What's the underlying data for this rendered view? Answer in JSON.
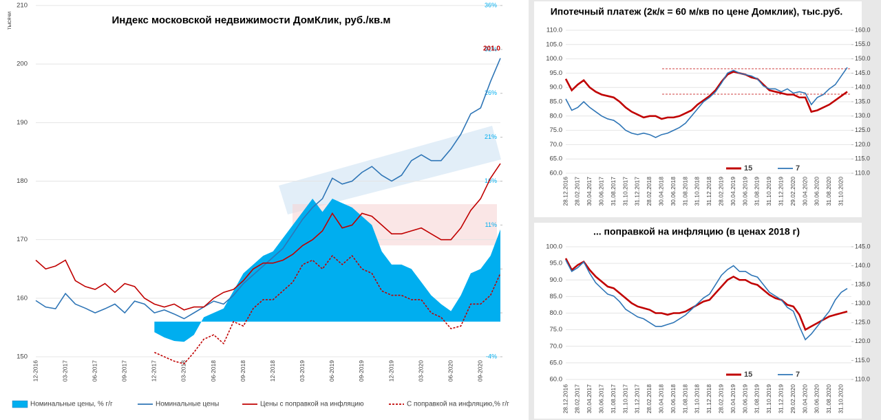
{
  "chart_data": [
    {
      "type": "line",
      "title": "Индекс московской недвижимости ДомКлик, руб./кв.м",
      "y_label": "тысячи",
      "categories": [
        "12-2016",
        null,
        null,
        "03-2017",
        null,
        null,
        "06-2017",
        null,
        null,
        "09-2017",
        null,
        null,
        "12-2017",
        null,
        null,
        "03-2018",
        null,
        null,
        "06-2018",
        null,
        null,
        "09-2018",
        null,
        null,
        "12-2018",
        null,
        null,
        "03-2019",
        null,
        null,
        "06-2019",
        null,
        null,
        "09-2019",
        null,
        null,
        "12-2019",
        null,
        null,
        "03-2020",
        null,
        null,
        "06-2020",
        null,
        null,
        "09-2020",
        null,
        null
      ],
      "ylim": [
        150,
        210
      ],
      "yticks": [
        150,
        160,
        170,
        180,
        190,
        200,
        210
      ],
      "y2lim": [
        -4,
        36
      ],
      "y2ticks": [
        {
          "value": -4,
          "label": "-4%"
        },
        {
          "value": 1,
          "label": "1%"
        },
        {
          "value": 6,
          "label": "6%"
        },
        {
          "value": 11,
          "label": "11%"
        },
        {
          "value": 16,
          "label": "16%"
        },
        {
          "value": 21,
          "label": "21%"
        },
        {
          "value": 26,
          "label": "26%"
        },
        {
          "value": 31,
          "label": "31%"
        },
        {
          "value": 36,
          "label": "36%"
        }
      ],
      "grid": true,
      "series": [
        {
          "name": "Номинальные цены, % г/г",
          "color": "#00aeef",
          "axis": "y2",
          "fill": true,
          "values": [
            null,
            null,
            null,
            null,
            null,
            null,
            null,
            null,
            null,
            null,
            null,
            null,
            -1.2,
            -1.8,
            -2.2,
            -2.3,
            -1.5,
            0.5,
            1.0,
            1.5,
            3.5,
            5.5,
            6.5,
            7.5,
            8.0,
            9.5,
            11.0,
            12.5,
            14.0,
            12.5,
            14.0,
            13.5,
            13.0,
            12.0,
            11.0,
            8.0,
            6.5,
            6.5,
            6.0,
            4.5,
            3.0,
            2.0,
            1.2,
            3.0,
            5.5,
            6.0,
            7.5,
            10.5
          ]
        },
        {
          "name": "Номинальные цены",
          "color": "#2e75b6",
          "values": [
            159.6,
            158.5,
            158.2,
            160.8,
            159,
            158.3,
            157.5,
            158.2,
            159,
            157.5,
            159.5,
            159,
            157.5,
            158,
            157.3,
            156.5,
            157.5,
            158.5,
            159.5,
            159,
            160.5,
            162.5,
            164,
            165.5,
            167,
            168.5,
            171,
            173.5,
            175.5,
            177,
            180.5,
            179.5,
            180,
            181.5,
            182.5,
            181,
            180,
            181,
            183.5,
            184.5,
            183.5,
            183.5,
            185.5,
            188,
            191.5,
            192.5,
            197,
            201.0
          ],
          "value_labels": [
            null,
            null,
            null,
            null,
            null,
            null,
            null,
            null,
            null,
            null,
            null,
            null,
            null,
            null,
            null,
            null,
            null,
            null,
            null,
            null,
            null,
            null,
            null,
            null,
            null,
            null,
            null,
            null,
            null,
            null,
            null,
            null,
            null,
            null,
            null,
            null,
            null,
            null,
            null,
            null,
            null,
            null,
            null,
            null,
            null,
            null,
            null,
            "201.0"
          ]
        },
        {
          "name": "Цены с поправкой на инфляцию",
          "color": "#c00000",
          "values": [
            166.5,
            165,
            165.5,
            166.5,
            163,
            162,
            161.5,
            162.5,
            161,
            162.5,
            162,
            160,
            159,
            158.5,
            159,
            158,
            158.5,
            158.5,
            160,
            161,
            161.5,
            163,
            165,
            166,
            166,
            166.5,
            167.5,
            169,
            170,
            171.5,
            174.5,
            172,
            172.5,
            174.5,
            174,
            172.5,
            171,
            171,
            171.5,
            172,
            171,
            170,
            170,
            172,
            175,
            177,
            180.5,
            183
          ]
        },
        {
          "name": "С поправкой на инфляцию,% г/г",
          "color": "#c00000",
          "axis": "y2",
          "dash": true,
          "values": [
            null,
            null,
            null,
            null,
            null,
            null,
            null,
            null,
            null,
            null,
            null,
            null,
            -3.5,
            -4,
            -4.5,
            -4.8,
            -3.5,
            -2,
            -1.5,
            -2.5,
            0,
            -0.5,
            1.5,
            2.5,
            2.5,
            3.5,
            4.5,
            6.5,
            7,
            6,
            7.5,
            6.5,
            7.5,
            6,
            5.5,
            3.5,
            3,
            3,
            2.5,
            2.5,
            1,
            0.5,
            -0.8,
            -0.5,
            2,
            2,
            3,
            5.5
          ]
        }
      ]
    },
    {
      "type": "line",
      "title": "Ипотечный платеж (2к/к = 60 м/кв по цене Домклик), тыс.руб.",
      "categories": [
        "28.12.2016",
        null,
        "28.02.2017",
        null,
        "30.04.2017",
        null,
        "30.06.2017",
        null,
        "31.08.2017",
        null,
        "31.10.2017",
        null,
        "31.12.2017",
        null,
        "28.02.2018",
        null,
        "30.04.2018",
        null,
        "30.06.2018",
        null,
        "31.08.2018",
        null,
        "31.10.2018",
        null,
        "31.12.2018",
        null,
        "28.02.2019",
        null,
        "30.04.2019",
        null,
        "30.06.2019",
        null,
        "31.08.2019",
        null,
        "31.10.2019",
        null,
        "31.12.2019",
        null,
        "29.02.2020",
        null,
        "30.04.2020",
        null,
        "30.06.2020",
        null,
        "31.08.2020",
        null,
        "31.10.2020",
        null
      ],
      "ylim": [
        60,
        110
      ],
      "yticks": [
        {
          "value": 60,
          "label": "60.0"
        },
        {
          "value": 65,
          "label": "65.0"
        },
        {
          "value": 70,
          "label": "70.0"
        },
        {
          "value": 75,
          "label": "75.0"
        },
        {
          "value": 80,
          "label": "80.0"
        },
        {
          "value": 85,
          "label": "85.0"
        },
        {
          "value": 90,
          "label": "90.0"
        },
        {
          "value": 95,
          "label": "95.0"
        },
        {
          "value": 100,
          "label": "100.0"
        },
        {
          "value": 105,
          "label": "105.0"
        },
        {
          "value": 110,
          "label": "110.0"
        }
      ],
      "y2lim": [
        110,
        160
      ],
      "y2ticks": [
        {
          "value": 110,
          "label": "110.0"
        },
        {
          "value": 115,
          "label": "115.0"
        },
        {
          "value": 120,
          "label": "120.0"
        },
        {
          "value": 125,
          "label": "125.0"
        },
        {
          "value": 130,
          "label": "130.0"
        },
        {
          "value": 135,
          "label": "135.0"
        },
        {
          "value": 140,
          "label": "140.0"
        },
        {
          "value": 145,
          "label": "145.0"
        },
        {
          "value": 150,
          "label": "150.0"
        },
        {
          "value": 155,
          "label": "155.0"
        },
        {
          "value": 160,
          "label": "160.0"
        }
      ],
      "grid": true,
      "series": [
        {
          "name": "15",
          "color": "#c00000",
          "values": [
            93,
            89,
            91,
            92.5,
            90,
            88.5,
            87.5,
            87,
            86.5,
            85,
            83,
            81.5,
            80.5,
            79.5,
            80,
            80,
            79,
            79.5,
            79.5,
            80,
            81,
            82,
            84,
            85.5,
            87,
            89,
            92,
            94.5,
            95.5,
            95,
            94.5,
            93.5,
            93,
            91,
            89,
            88.5,
            88,
            87.5,
            87.5,
            86.5,
            86.5,
            81.5,
            82,
            83,
            84,
            85.5,
            87,
            88.5
          ]
        },
        {
          "name": "7",
          "color": "#2e75b6",
          "axis": "y2",
          "values": [
            136,
            132,
            133,
            135,
            133,
            131.5,
            130,
            129,
            128.5,
            127,
            125,
            124,
            123.5,
            124,
            123.5,
            122.5,
            123.5,
            124,
            125,
            126,
            127.5,
            130,
            132.5,
            135,
            136.5,
            138.5,
            141.5,
            145,
            146,
            145,
            144.5,
            144,
            143,
            140.5,
            139.5,
            139.5,
            138.5,
            139.5,
            138,
            138.5,
            138,
            134,
            136.5,
            137.5,
            139.5,
            141,
            144,
            147
          ]
        }
      ]
    },
    {
      "type": "line",
      "title": "... поправкой на инфляцию (в ценах 2018 г)",
      "categories": [
        "28.12.2016",
        null,
        "28.02.2017",
        null,
        "30.04.2017",
        null,
        "30.06.2017",
        null,
        "31.08.2017",
        null,
        "31.10.2017",
        null,
        "31.12.2017",
        null,
        "28.02.2018",
        null,
        "30.04.2018",
        null,
        "30.06.2018",
        null,
        "31.08.2018",
        null,
        "31.10.2018",
        null,
        "31.12.2018",
        null,
        "28.02.2019",
        null,
        "30.04.2019",
        null,
        "30.06.2019",
        null,
        "31.08.2019",
        null,
        "31.10.2019",
        null,
        "31.12.2019",
        null,
        "29.02.2020",
        null,
        "30.04.2020",
        null,
        "30.06.2020",
        null,
        "31.08.2020",
        null,
        "31.10.2020",
        null
      ],
      "ylim": [
        60,
        100
      ],
      "yticks": [
        {
          "value": 60,
          "label": "60.0"
        },
        {
          "value": 65,
          "label": "65.0"
        },
        {
          "value": 70,
          "label": "70.0"
        },
        {
          "value": 75,
          "label": "75.0"
        },
        {
          "value": 80,
          "label": "80.0"
        },
        {
          "value": 85,
          "label": "85.0"
        },
        {
          "value": 90,
          "label": "90.0"
        },
        {
          "value": 95,
          "label": "95.0"
        },
        {
          "value": 100,
          "label": "100.0"
        }
      ],
      "y2lim": [
        110,
        145
      ],
      "y2ticks": [
        {
          "value": 110,
          "label": "110.0"
        },
        {
          "value": 115,
          "label": "115.0"
        },
        {
          "value": 120,
          "label": "120.0"
        },
        {
          "value": 125,
          "label": "125.0"
        },
        {
          "value": 130,
          "label": "130.0"
        },
        {
          "value": 135,
          "label": "135.0"
        },
        {
          "value": 140,
          "label": "140.0"
        },
        {
          "value": 145,
          "label": "145.0"
        }
      ],
      "grid": true,
      "series": [
        {
          "name": "15",
          "color": "#c00000",
          "values": [
            96.5,
            93,
            94.5,
            95.5,
            93,
            91,
            89.5,
            88,
            87.5,
            86,
            84.5,
            83,
            82,
            81.5,
            81,
            80,
            80,
            79.5,
            80,
            80,
            80.5,
            81.5,
            82.5,
            83.5,
            84,
            86,
            88,
            90,
            91,
            90,
            90,
            89,
            88.5,
            87,
            85.5,
            84.5,
            84,
            82.5,
            82,
            79.5,
            75,
            76,
            77,
            78,
            79,
            79.5,
            80,
            80.5
          ]
        },
        {
          "name": "7",
          "color": "#2e75b6",
          "axis": "y2",
          "values": [
            141.5,
            138.5,
            139.5,
            141,
            138,
            135.5,
            134,
            132.5,
            132,
            130.5,
            128.5,
            127.5,
            126.5,
            126,
            125,
            124,
            124,
            124.5,
            125,
            126,
            127,
            128.5,
            130,
            131.5,
            132.5,
            135,
            137.5,
            139,
            140,
            138.5,
            138.5,
            137.5,
            137,
            135,
            133,
            132,
            131,
            129,
            128,
            124,
            120.5,
            122,
            124,
            126,
            128,
            131,
            133,
            134
          ]
        }
      ]
    }
  ]
}
